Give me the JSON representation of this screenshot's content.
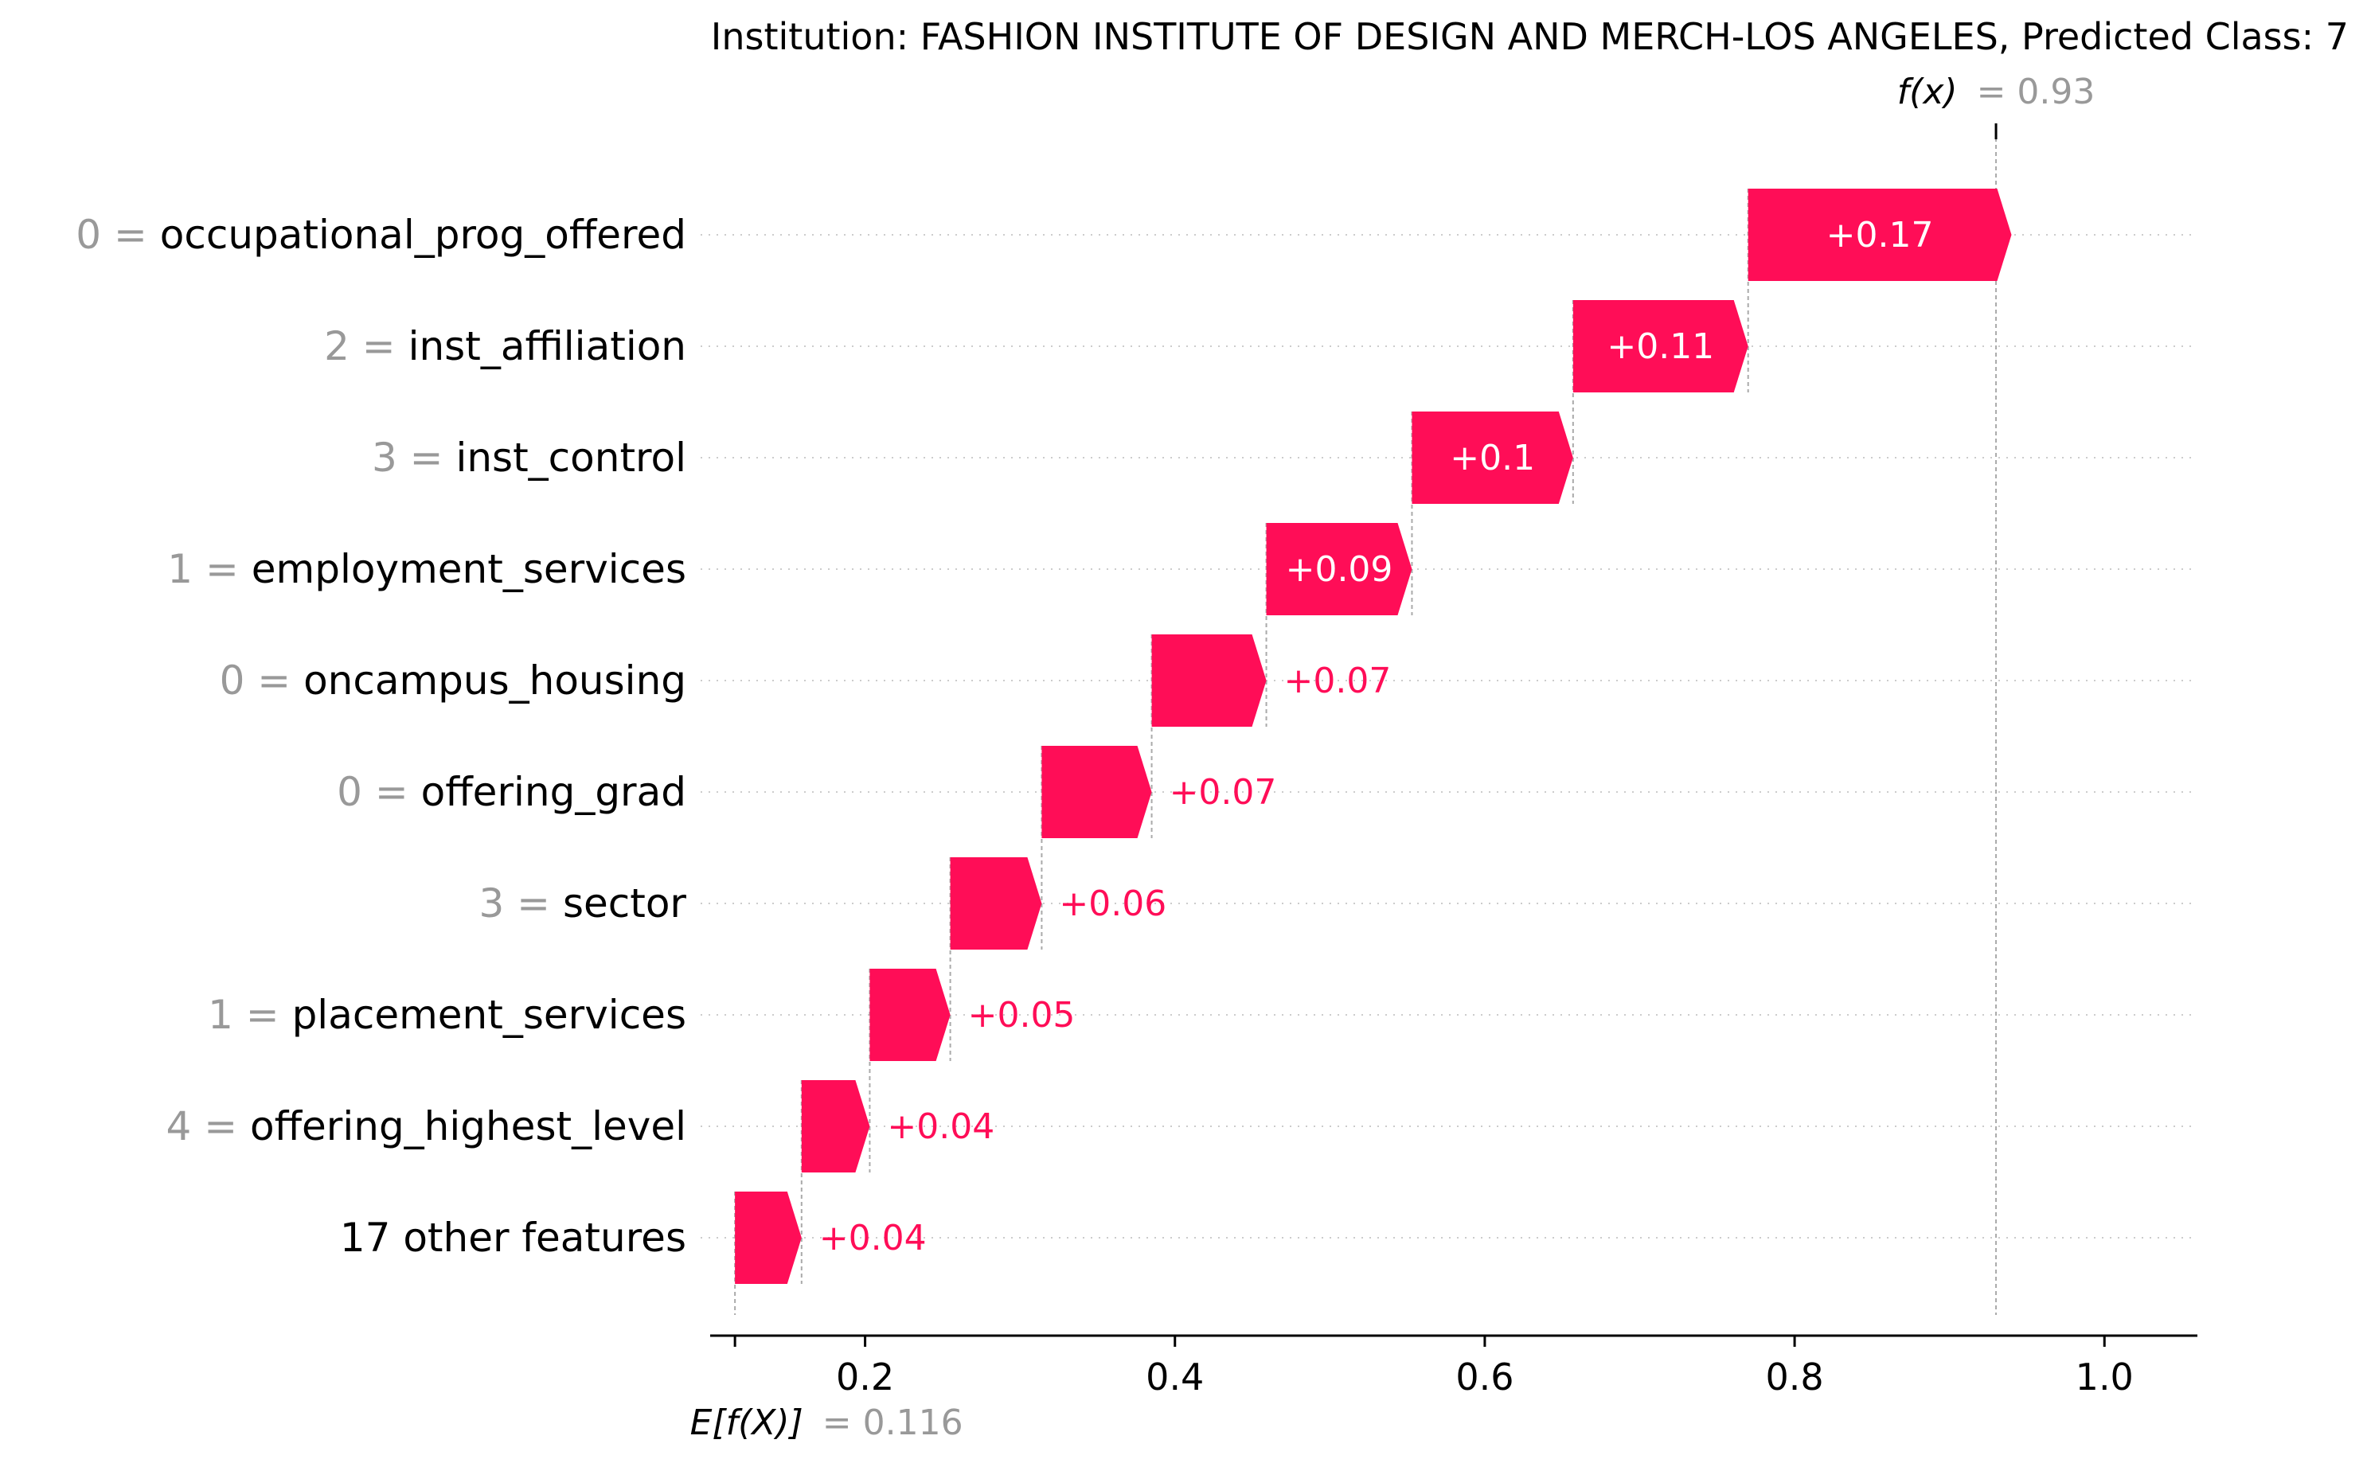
{
  "chart_data": {
    "type": "waterfall",
    "title": "Institution: FASHION INSTITUTE OF DESIGN AND MERCH-LOS ANGELES, Predicted Class: 7",
    "base_value": 0.116,
    "base_label": "E[f(X)]",
    "base_value_text": "= 0.116",
    "output_value": 0.93,
    "output_label": "f(x)",
    "output_value_text": "= 0.93",
    "xlim": [
      0.1,
      1.06
    ],
    "xticks": [
      0.2,
      0.4,
      0.6,
      0.8,
      1.0
    ],
    "xtick_labels": [
      "0.2",
      "0.4",
      "0.6",
      "0.8",
      "1.0"
    ],
    "positive_color": "#ff0d57",
    "feature_value_color": "#999999",
    "features": [
      {
        "value": "0 =",
        "name": "occupational_prog_offered",
        "shap": 0.17,
        "label": "+0.17"
      },
      {
        "value": "2 =",
        "name": "inst_affiliation",
        "shap": 0.113,
        "label": "+0.11"
      },
      {
        "value": "3 =",
        "name": "inst_control",
        "shap": 0.104,
        "label": "+0.1"
      },
      {
        "value": "1 =",
        "name": "employment_services",
        "shap": 0.094,
        "label": "+0.09"
      },
      {
        "value": "0 =",
        "name": "oncampus_housing",
        "shap": 0.074,
        "label": "+0.07"
      },
      {
        "value": "0 =",
        "name": "offering_grad",
        "shap": 0.071,
        "label": "+0.07"
      },
      {
        "value": "3 =",
        "name": "sector",
        "shap": 0.059,
        "label": "+0.06"
      },
      {
        "value": "1 =",
        "name": "placement_services",
        "shap": 0.052,
        "label": "+0.05"
      },
      {
        "value": "4 =",
        "name": "offering_highest_level",
        "shap": 0.044,
        "label": "+0.04"
      },
      {
        "value": "",
        "name": "17 other features",
        "shap": 0.043,
        "label": "+0.04"
      }
    ]
  }
}
